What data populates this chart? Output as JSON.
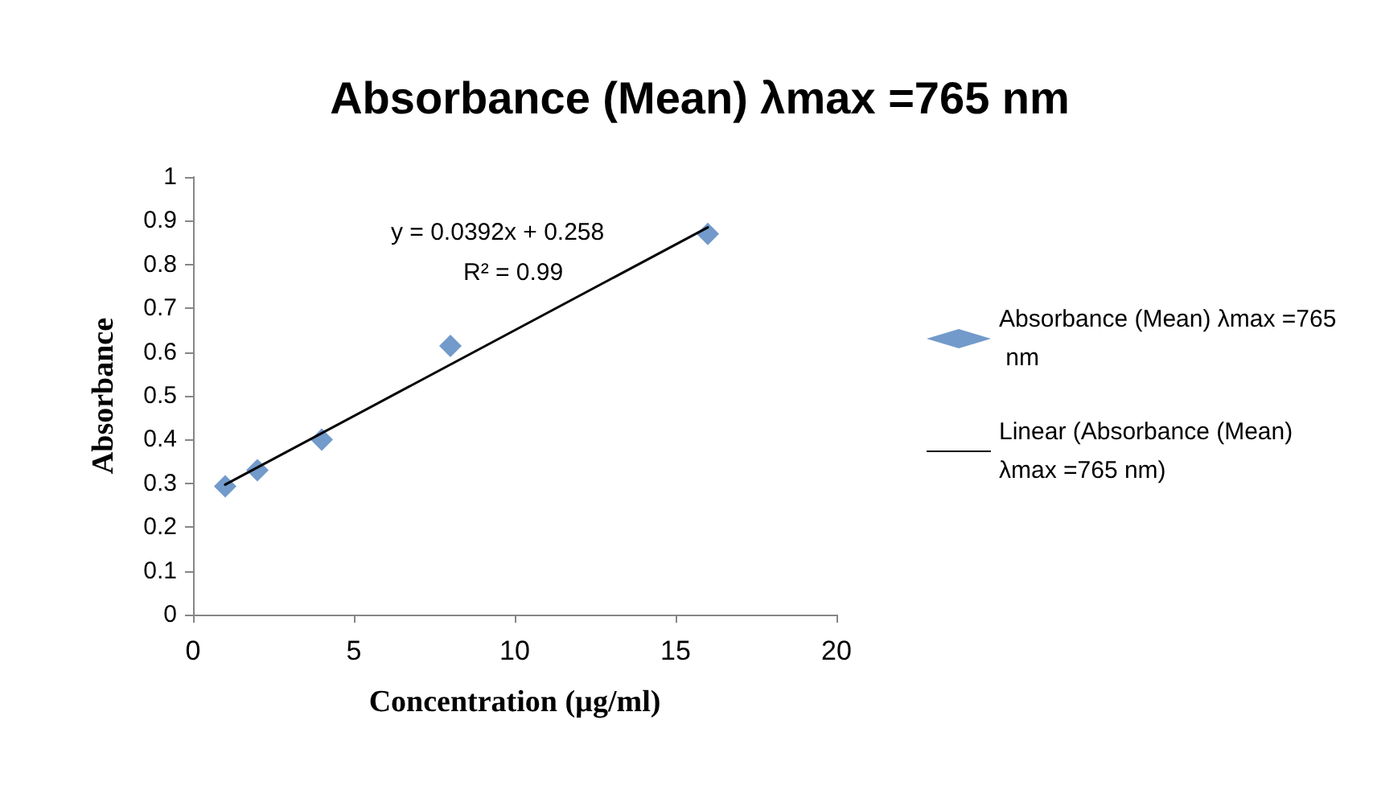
{
  "chart_data": {
    "type": "scatter",
    "title": "Absorbance (Mean) λmax =765 nm",
    "xlabel": "Concentration (µg/ml)",
    "ylabel": "Absorbance",
    "x": [
      1,
      2,
      4,
      8,
      16
    ],
    "series": [
      {
        "name": "Absorbance (Mean) λmax =765 nm",
        "color": "#4f81bd",
        "values": [
          0.293,
          0.33,
          0.4,
          0.614,
          0.87
        ],
        "marker": "diamond"
      },
      {
        "name": "Linear (Absorbance (Mean) λmax =765 nm)",
        "type": "line",
        "color": "#000000",
        "x": [
          1,
          16
        ],
        "values": [
          0.297,
          0.885
        ],
        "marker": "none",
        "line_style": "solid"
      }
    ],
    "annotations": [
      "y = 0.0392x + 0.258",
      "R² = 0.99"
    ],
    "xlim": [
      0,
      20
    ],
    "xticks": [
      0,
      5,
      10,
      15,
      20
    ],
    "ylim": [
      0,
      1
    ],
    "yticks": [
      0,
      0.1,
      0.2,
      0.3,
      0.4,
      0.5,
      0.6,
      0.7,
      0.8,
      0.9,
      1
    ],
    "grid": false,
    "legend": "right"
  }
}
